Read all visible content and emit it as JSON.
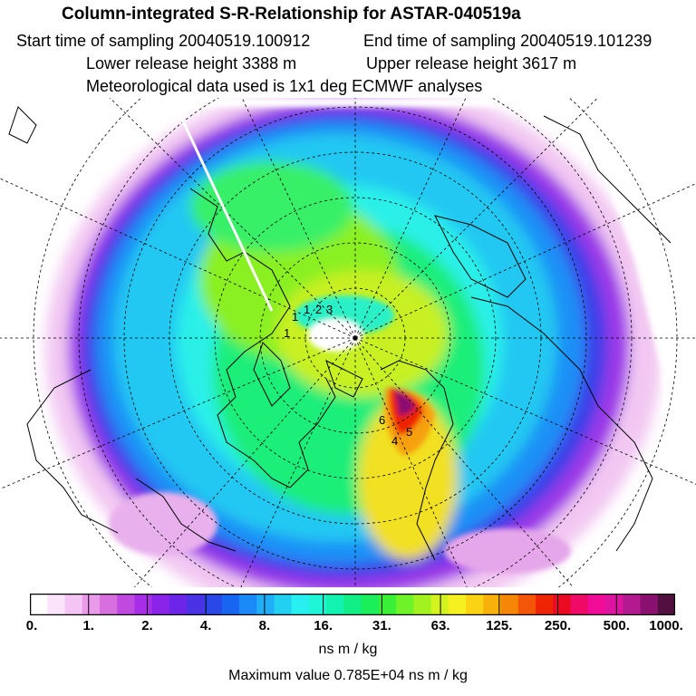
{
  "header": {
    "title": "Column-integrated S-R-Relationship for ASTAR-040519a",
    "start_time": "Start time of sampling 20040519.100912",
    "end_time": "End time of sampling 20040519.101239",
    "lower_release": "Lower release height 3388 m",
    "upper_release": "Upper release height 3617 m",
    "met_data": "Meteorological data used is 1x1 deg ECMWF analyses"
  },
  "colorbar": {
    "colors": [
      "#ffffff",
      "#fbe4fb",
      "#f4c4f4",
      "#e99be9",
      "#d86fde",
      "#c04ae0",
      "#a72ee6",
      "#8a24e8",
      "#6c24e8",
      "#4a32e6",
      "#2a48e6",
      "#1865f2",
      "#1a8af8",
      "#20aef8",
      "#22d0f2",
      "#28f0f0",
      "#1ff6d8",
      "#12f2b0",
      "#12ee86",
      "#1aee5a",
      "#3af036",
      "#6ef228",
      "#a2f220",
      "#d4f21e",
      "#f6f020",
      "#fad414",
      "#f8b00a",
      "#f68606",
      "#f25606",
      "#ee2404",
      "#ea0a22",
      "#ee0a66",
      "#f00c96",
      "#dc14a0",
      "#b41a90",
      "#8a1070",
      "#521040"
    ],
    "tick_labels": [
      "0.",
      "1.",
      "2.",
      "4.",
      "8.",
      "16.",
      "31.",
      "63.",
      "125.",
      "250.",
      "500.",
      "1000."
    ],
    "units": "ns m / kg"
  },
  "max_value": "Maximum value  0.785E+04 ns m / kg",
  "map_labels": [
    "1",
    "1",
    "2",
    "3",
    "4",
    "5",
    "6",
    "1"
  ]
}
